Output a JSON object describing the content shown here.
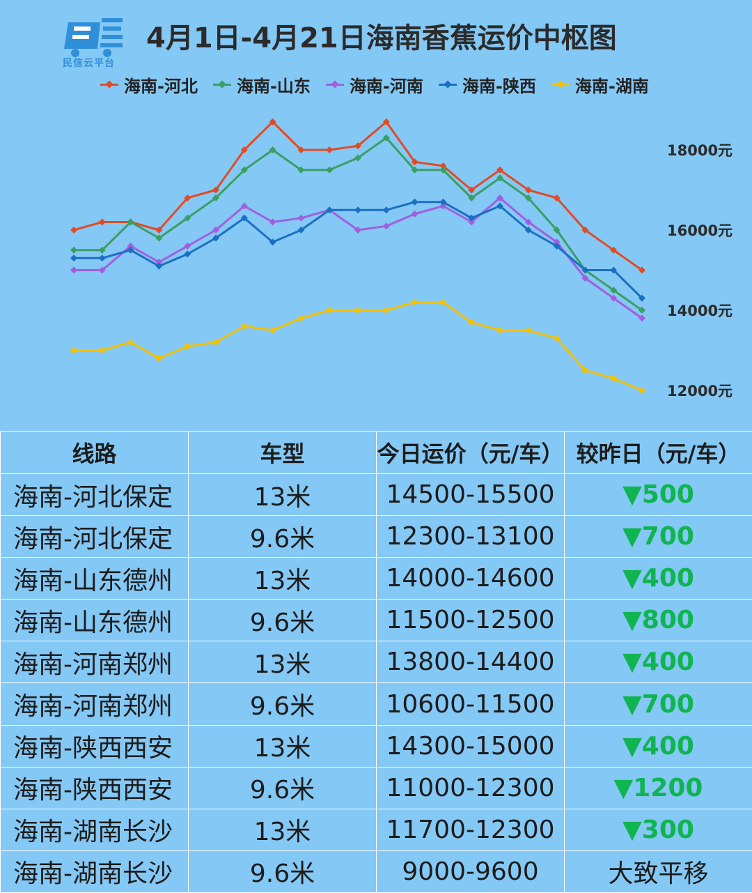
{
  "header": {
    "logo_text": "民信云平台",
    "title": "4月1日-4月21日海南香蕉运价中枢图"
  },
  "chart_data": {
    "type": "line",
    "title": "4月1日-4月21日海南香蕉运价中枢图",
    "xlabel": "",
    "ylabel": "",
    "x": [
      1,
      2,
      3,
      4,
      5,
      6,
      7,
      8,
      9,
      10,
      11,
      12,
      13,
      14,
      15,
      16,
      17,
      18,
      19,
      20,
      21
    ],
    "ylim": [
      12000,
      19000
    ],
    "y_ticks": [
      12000,
      14000,
      16000,
      18000
    ],
    "y_tick_labels": [
      "12000元",
      "14000元",
      "16000元",
      "18000元"
    ],
    "y_axis_position": "right",
    "grid": false,
    "legend": "top",
    "series": [
      {
        "name": "海南-河北",
        "color": "#e04b25",
        "values": [
          16000,
          16200,
          16200,
          16000,
          16800,
          17000,
          18000,
          18700,
          18000,
          18000,
          18100,
          18700,
          17700,
          17600,
          17000,
          17500,
          17000,
          16800,
          16000,
          15500,
          15000
        ]
      },
      {
        "name": "海南-山东",
        "color": "#3a9e65",
        "values": [
          15500,
          15500,
          16200,
          15800,
          16300,
          16800,
          17500,
          18000,
          17500,
          17500,
          17800,
          18300,
          17500,
          17500,
          16800,
          17300,
          16800,
          16000,
          15000,
          14500,
          14000
        ]
      },
      {
        "name": "海南-河南",
        "color": "#a05ee0",
        "values": [
          15000,
          15000,
          15600,
          15200,
          15600,
          16000,
          16600,
          16200,
          16300,
          16500,
          16000,
          16100,
          16400,
          16600,
          16200,
          16800,
          16200,
          15700,
          14800,
          14300,
          13800
        ]
      },
      {
        "name": "海南-陕西",
        "color": "#1a6fc4",
        "values": [
          15300,
          15300,
          15500,
          15100,
          15400,
          15800,
          16300,
          15700,
          16000,
          16500,
          16500,
          16500,
          16700,
          16700,
          16300,
          16600,
          16000,
          15600,
          15000,
          15000,
          14300
        ]
      },
      {
        "name": "海南-湖南",
        "color": "#f5c100",
        "values": [
          13000,
          13000,
          13200,
          12800,
          13100,
          13200,
          13600,
          13500,
          13800,
          14000,
          14000,
          14000,
          14200,
          14200,
          13700,
          13500,
          13500,
          13300,
          12500,
          12300,
          12000
        ]
      }
    ]
  },
  "table": {
    "headers": [
      "线路",
      "车型",
      "今日运价（元/车）",
      "较昨日（元/车）"
    ],
    "rows": [
      {
        "route": "海南-河北保定",
        "truck": "13米",
        "price": "14500-15500",
        "change": "▼500"
      },
      {
        "route": "海南-河北保定",
        "truck": "9.6米",
        "price": "12300-13100",
        "change": "▼700"
      },
      {
        "route": "海南-山东德州",
        "truck": "13米",
        "price": "14000-14600",
        "change": "▼400"
      },
      {
        "route": "海南-山东德州",
        "truck": "9.6米",
        "price": "11500-12500",
        "change": "▼800"
      },
      {
        "route": "海南-河南郑州",
        "truck": "13米",
        "price": "13800-14400",
        "change": "▼400"
      },
      {
        "route": "海南-河南郑州",
        "truck": "9.6米",
        "price": "10600-11500",
        "change": "▼700"
      },
      {
        "route": "海南-陕西西安",
        "truck": "13米",
        "price": "14300-15000",
        "change": "▼400"
      },
      {
        "route": "海南-陕西西安",
        "truck": "9.6米",
        "price": "11000-12300",
        "change": "▼1200"
      },
      {
        "route": "海南-湖南长沙",
        "truck": "13米",
        "price": "11700-12300",
        "change": "▼300"
      },
      {
        "route": "海南-湖南长沙",
        "truck": "9.6米",
        "price": "9000-9600",
        "change": "大致平移"
      }
    ]
  }
}
